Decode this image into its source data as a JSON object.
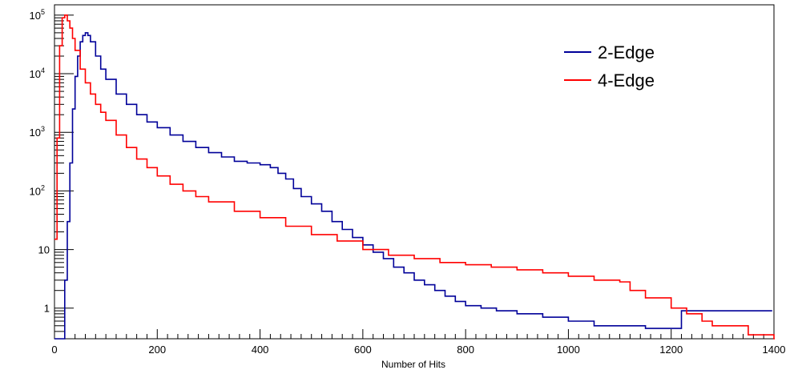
{
  "chart_data": {
    "type": "line",
    "title": "",
    "xlabel": "Number of Hits",
    "ylabel": "",
    "xlim": [
      0,
      1400
    ],
    "ylim": [
      0.3,
      150000
    ],
    "yscale": "log",
    "x_ticks": [
      0,
      200,
      400,
      600,
      800,
      1000,
      1200,
      1400
    ],
    "x_tick_labels": [
      "0",
      "200",
      "400",
      "600",
      "800",
      "1000",
      "1200",
      "1400"
    ],
    "y_ticks": [
      1,
      10,
      100,
      1000,
      10000,
      100000
    ],
    "y_tick_labels": [
      {
        "base": "1",
        "exp": ""
      },
      {
        "base": "10",
        "exp": ""
      },
      {
        "base": "10",
        "exp": "2"
      },
      {
        "base": "10",
        "exp": "3"
      },
      {
        "base": "10",
        "exp": "4"
      },
      {
        "base": "10",
        "exp": "5"
      }
    ],
    "legend_position": "top-right",
    "grid": false,
    "series": [
      {
        "name": "2-Edge",
        "color": "#000099",
        "x": [
          0,
          15,
          20,
          25,
          30,
          35,
          40,
          45,
          50,
          55,
          60,
          65,
          70,
          80,
          90,
          100,
          120,
          140,
          160,
          180,
          200,
          225,
          250,
          275,
          300,
          325,
          350,
          375,
          400,
          420,
          435,
          450,
          465,
          480,
          500,
          520,
          540,
          560,
          580,
          600,
          620,
          640,
          660,
          680,
          700,
          720,
          740,
          760,
          780,
          800,
          830,
          860,
          900,
          950,
          1000,
          1050,
          1100,
          1150,
          1200,
          1220,
          1275,
          1350,
          1395
        ],
        "y": [
          0.3,
          0.3,
          3,
          30,
          300,
          2500,
          9000,
          20000,
          35000,
          45000,
          50000,
          45000,
          35000,
          20000,
          12000,
          8000,
          4500,
          3000,
          2000,
          1500,
          1200,
          900,
          700,
          550,
          450,
          380,
          320,
          300,
          280,
          250,
          200,
          160,
          110,
          80,
          60,
          45,
          30,
          22,
          16,
          12,
          9,
          7,
          5,
          4,
          3,
          2.5,
          2,
          1.6,
          1.3,
          1.1,
          1,
          0.9,
          0.8,
          0.7,
          0.6,
          0.5,
          0.5,
          0.45,
          0.45,
          0.9,
          0.9,
          0.9,
          0.9
        ]
      },
      {
        "name": "4-Edge",
        "color": "#ff0000",
        "x": [
          0,
          5,
          10,
          15,
          20,
          25,
          30,
          35,
          40,
          50,
          60,
          70,
          80,
          90,
          100,
          120,
          140,
          160,
          180,
          200,
          225,
          250,
          275,
          300,
          350,
          400,
          450,
          500,
          550,
          600,
          650,
          700,
          750,
          800,
          850,
          900,
          950,
          1000,
          1050,
          1100,
          1120,
          1150,
          1200,
          1230,
          1260,
          1280,
          1350,
          1400
        ],
        "y": [
          15,
          800,
          30000,
          90000,
          100000,
          80000,
          60000,
          40000,
          25000,
          12000,
          7000,
          4500,
          3000,
          2200,
          1600,
          900,
          550,
          350,
          250,
          180,
          130,
          100,
          80,
          65,
          45,
          35,
          25,
          18,
          14,
          10,
          8,
          7,
          6,
          5.5,
          5,
          4.5,
          4,
          3.5,
          3,
          2.8,
          2,
          1.5,
          1,
          0.8,
          0.6,
          0.5,
          0.35,
          0.3
        ]
      }
    ]
  }
}
